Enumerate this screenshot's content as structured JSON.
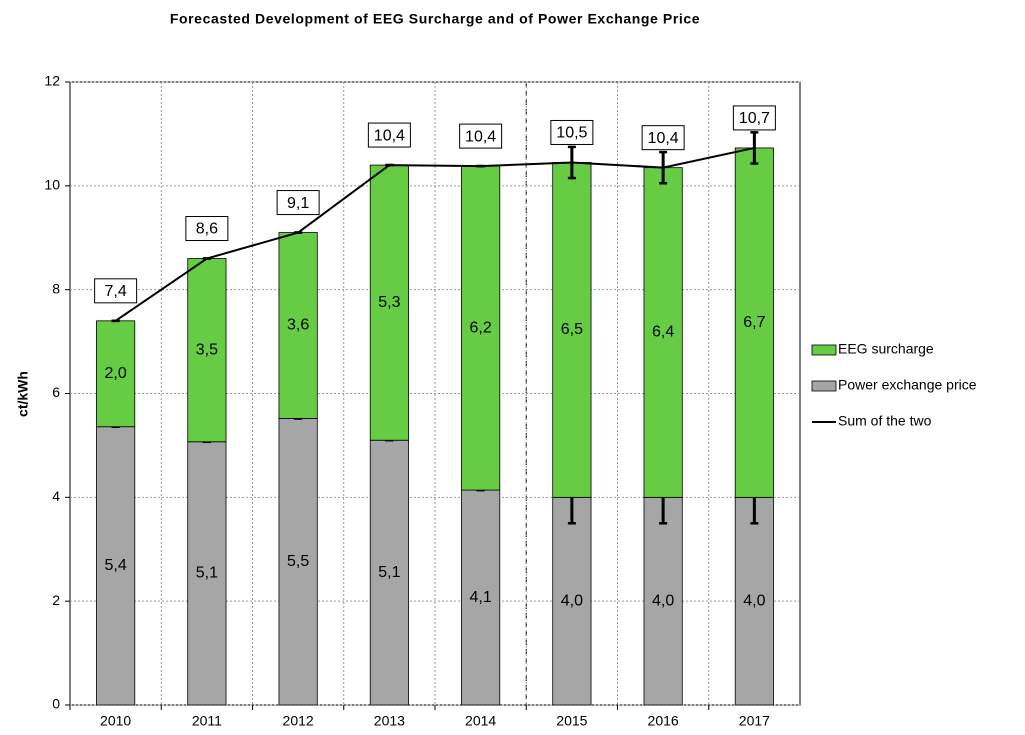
{
  "chart_data": {
    "type": "bar",
    "stacked": true,
    "title": "Forecasted Development of EEG Surcharge and of Power Exchange Price",
    "y_label": "ct/kWh",
    "categories": [
      "2010",
      "2011",
      "2012",
      "2013",
      "2014",
      "2015",
      "2016",
      "2017"
    ],
    "series": [
      {
        "name": "EEG surcharge",
        "color": "#66cc44",
        "values": [
          2.04,
          3.53,
          3.58,
          5.3,
          6.24,
          6.45,
          6.35,
          6.73
        ],
        "value_labels": [
          "2,0",
          "3,5",
          "3,6",
          "5,3",
          "6,2",
          "6,5",
          "6,4",
          "6,7"
        ]
      },
      {
        "name": "Power exchange price",
        "color": "#a6a6a6",
        "values": [
          5.36,
          5.07,
          5.52,
          5.1,
          4.14,
          4.0,
          4.0,
          4.0
        ],
        "value_labels": [
          "5,4",
          "5,1",
          "5,5",
          "5,1",
          "4,1",
          "4,0",
          "4,0",
          "4,0"
        ],
        "errors": [
          0,
          0,
          0,
          0,
          0,
          0.5,
          0.5,
          0.5
        ]
      },
      {
        "name": "Sum of the two",
        "type": "line",
        "color": "#000000",
        "values": [
          7.4,
          8.6,
          9.1,
          10.4,
          10.38,
          10.45,
          10.35,
          10.73
        ],
        "value_labels": [
          "7,4",
          "8,6",
          "9,1",
          "10,4",
          "10,4",
          "10,5",
          "10,4",
          "10,7"
        ],
        "errors": [
          0,
          0,
          0,
          0,
          0,
          0.3,
          0.3,
          0.3
        ]
      }
    ],
    "ylim": [
      0,
      12
    ],
    "yticks": [
      0,
      2,
      4,
      6,
      8,
      10,
      12
    ],
    "grid": true,
    "legend": "right"
  }
}
